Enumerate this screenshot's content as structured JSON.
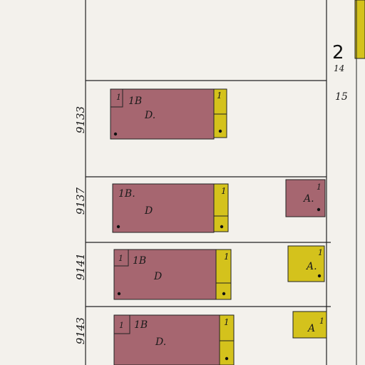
{
  "sheet_marker": {
    "number": "2",
    "subnumber": "14",
    "lot_label": "15"
  },
  "colors": {
    "paper": "#f3f1ec",
    "brick": "#a66670",
    "frame": "#d4c21c",
    "line": "#222222"
  },
  "lots": [
    {
      "address": "9133",
      "stories": "1",
      "bldg_label": "1B",
      "use": "D.",
      "rear_stories": "1",
      "outbuilding": null
    },
    {
      "address": "9137",
      "stories": "1",
      "bldg_label": "1B.",
      "use": "D",
      "rear_stories": "1",
      "outbuilding": {
        "use": "A.",
        "stories": "1",
        "material": "brick"
      }
    },
    {
      "address": "9141",
      "stories": "1",
      "bldg_label": "1B",
      "use": "D",
      "rear_stories": "1",
      "outbuilding": {
        "use": "A.",
        "stories": "1",
        "material": "frame"
      }
    },
    {
      "address": "9143",
      "stories": "1",
      "bldg_label": "1B",
      "use": "D.",
      "rear_stories": "1",
      "outbuilding": {
        "use": "A",
        "stories": "1",
        "material": "frame"
      }
    }
  ]
}
